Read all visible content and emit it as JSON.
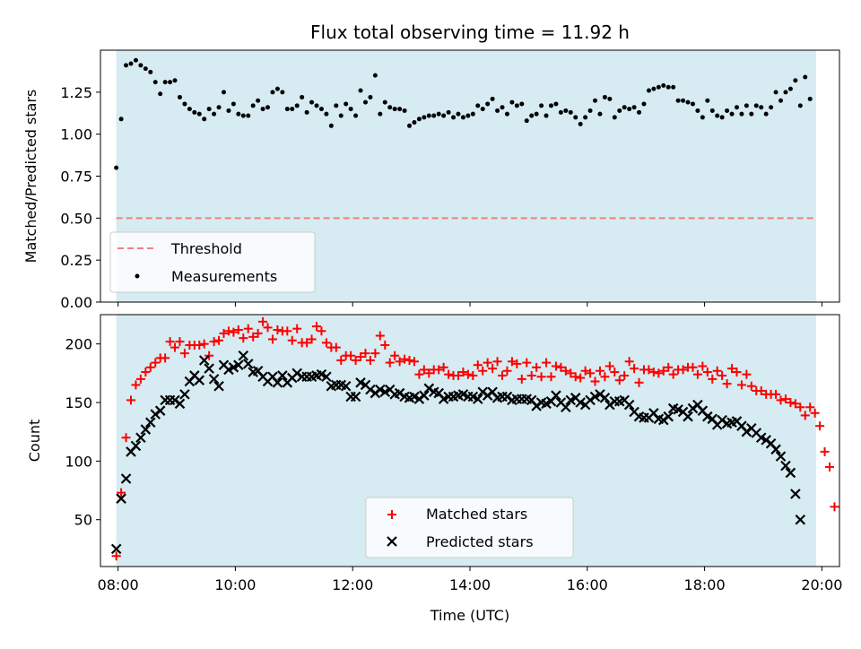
{
  "chart_data": [
    {
      "type": "scatter",
      "title": "Flux total observing time = 11.92 h",
      "xlabel": "",
      "ylabel": "Matched/Predicted stars",
      "ylim": [
        0,
        1.5
      ],
      "yticks": [
        "0.00",
        "0.25",
        "0.50",
        "0.75",
        "1.00",
        "1.25"
      ],
      "ytick_values": [
        0,
        0.25,
        0.5,
        0.75,
        1.0,
        1.25
      ],
      "x_start_hours": 7.97,
      "x_step_hours": 0.0833,
      "shaded_span_hours": [
        7.97,
        19.9
      ],
      "shaded_color": "#add8e6",
      "legend_position": "lower left",
      "threshold": {
        "name": "Threshold",
        "value": 0.5,
        "color": "#f08080",
        "style": "dashed"
      },
      "series": [
        {
          "name": "Measurements",
          "color": "#000000",
          "marker": "dot",
          "values": [
            0.8,
            1.09,
            1.41,
            1.42,
            1.44,
            1.41,
            1.39,
            1.37,
            1.31,
            1.24,
            1.31,
            1.31,
            1.32,
            1.22,
            1.18,
            1.15,
            1.13,
            1.12,
            1.09,
            1.15,
            1.12,
            1.16,
            1.25,
            1.14,
            1.18,
            1.12,
            1.11,
            1.11,
            1.17,
            1.2,
            1.15,
            1.16,
            1.25,
            1.27,
            1.25,
            1.15,
            1.15,
            1.17,
            1.22,
            1.13,
            1.19,
            1.17,
            1.15,
            1.12,
            1.05,
            1.17,
            1.11,
            1.18,
            1.15,
            1.11,
            1.26,
            1.19,
            1.22,
            1.35,
            1.12,
            1.19,
            1.16,
            1.15,
            1.15,
            1.14,
            1.05,
            1.07,
            1.09,
            1.1,
            1.11,
            1.11,
            1.12,
            1.11,
            1.13,
            1.1,
            1.12,
            1.1,
            1.11,
            1.12,
            1.17,
            1.15,
            1.18,
            1.21,
            1.14,
            1.16,
            1.12,
            1.19,
            1.17,
            1.18,
            1.08,
            1.11,
            1.12,
            1.17,
            1.11,
            1.17,
            1.18,
            1.13,
            1.14,
            1.13,
            1.1,
            1.06,
            1.1,
            1.14,
            1.2,
            1.12,
            1.22,
            1.21,
            1.1,
            1.14,
            1.16,
            1.15,
            1.16,
            1.13,
            1.18,
            1.26,
            1.27,
            1.28,
            1.29,
            1.28,
            1.28,
            1.2,
            1.2,
            1.19,
            1.18,
            1.14,
            1.1,
            1.2,
            1.14,
            1.11,
            1.1,
            1.14,
            1.12,
            1.16,
            1.12,
            1.17,
            1.12,
            1.17,
            1.16,
            1.12,
            1.16,
            1.25,
            1.2,
            1.25,
            1.27,
            1.32,
            1.17,
            1.34,
            1.21
          ]
        }
      ]
    },
    {
      "type": "scatter",
      "title": "",
      "xlabel": "Time (UTC)",
      "ylabel": "Count",
      "ylim": [
        10,
        225
      ],
      "yticks": [
        "50",
        "100",
        "150",
        "200"
      ],
      "ytick_values": [
        50,
        100,
        150,
        200
      ],
      "xticks": [
        "08:00",
        "10:00",
        "12:00",
        "14:00",
        "16:00",
        "18:00",
        "20:00"
      ],
      "xtick_values": [
        8,
        10,
        12,
        14,
        16,
        18,
        20
      ],
      "xlim": [
        7.7,
        20.3
      ],
      "x_start_hours": 7.97,
      "x_step_hours": 0.0833,
      "shaded_span_hours": [
        7.97,
        19.9
      ],
      "shaded_color": "#add8e6",
      "legend_position": "lower center",
      "series": [
        {
          "name": "Matched stars",
          "color": "#ff0000",
          "marker": "plus",
          "values": [
            19,
            73,
            120,
            152,
            165,
            170,
            176,
            180,
            184,
            188,
            188,
            202,
            197,
            202,
            192,
            199,
            199,
            199,
            200,
            190,
            202,
            203,
            209,
            211,
            210,
            212,
            205,
            213,
            206,
            209,
            219,
            214,
            204,
            212,
            211,
            211,
            203,
            213,
            201,
            201,
            204,
            215,
            211,
            201,
            197,
            197,
            186,
            190,
            190,
            186,
            189,
            192,
            186,
            192,
            207,
            199,
            184,
            190,
            185,
            187,
            186,
            185,
            174,
            178,
            175,
            178,
            178,
            180,
            174,
            173,
            173,
            176,
            174,
            173,
            182,
            177,
            184,
            179,
            185,
            173,
            177,
            185,
            183,
            170,
            184,
            173,
            180,
            172,
            184,
            172,
            181,
            180,
            177,
            175,
            172,
            171,
            177,
            175,
            168,
            177,
            172,
            181,
            176,
            169,
            173,
            185,
            179,
            167,
            178,
            178,
            176,
            175,
            177,
            180,
            174,
            178,
            178,
            180,
            180,
            174,
            181,
            176,
            170,
            177,
            173,
            166,
            179,
            176,
            165,
            174,
            164,
            160,
            160,
            157,
            157,
            157,
            152,
            153,
            150,
            149,
            146,
            139,
            146,
            141,
            130,
            108,
            95,
            61
          ]
        },
        {
          "name": "Predicted stars",
          "color": "#000000",
          "marker": "x",
          "values": [
            25,
            68,
            85,
            108,
            113,
            120,
            127,
            133,
            140,
            143,
            152,
            152,
            152,
            149,
            157,
            168,
            173,
            169,
            186,
            179,
            170,
            164,
            182,
            178,
            180,
            182,
            190,
            183,
            176,
            177,
            172,
            168,
            172,
            167,
            173,
            167,
            171,
            175,
            172,
            172,
            172,
            173,
            174,
            172,
            164,
            165,
            165,
            164,
            155,
            155,
            167,
            165,
            161,
            158,
            161,
            159,
            161,
            157,
            158,
            155,
            154,
            155,
            153,
            156,
            162,
            159,
            158,
            153,
            155,
            155,
            156,
            157,
            155,
            155,
            153,
            159,
            156,
            159,
            154,
            155,
            155,
            152,
            153,
            153,
            153,
            152,
            147,
            150,
            149,
            151,
            156,
            150,
            146,
            152,
            154,
            150,
            148,
            152,
            155,
            157,
            154,
            148,
            151,
            151,
            152,
            148,
            142,
            138,
            137,
            137,
            141,
            136,
            135,
            138,
            145,
            144,
            142,
            138,
            145,
            148,
            143,
            138,
            136,
            131,
            135,
            132,
            133,
            134,
            130,
            125,
            128,
            124,
            120,
            118,
            115,
            110,
            104,
            96,
            90,
            72,
            50
          ]
        }
      ]
    }
  ]
}
